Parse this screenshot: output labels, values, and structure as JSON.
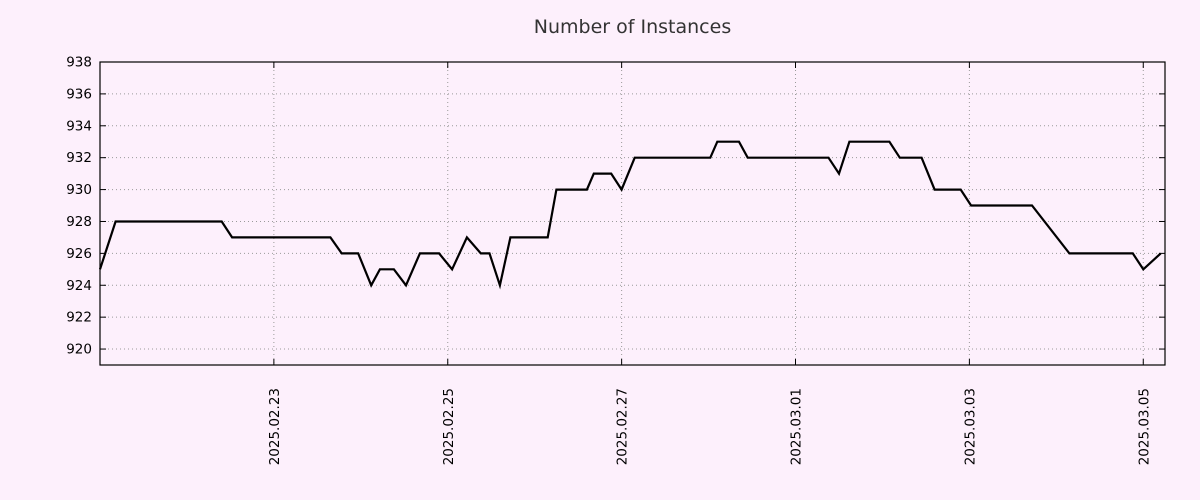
{
  "chart_data": {
    "type": "line",
    "title": "Number of Instances",
    "xlabel": "",
    "ylabel": "",
    "ylim": [
      919,
      938
    ],
    "yticks": [
      920,
      922,
      924,
      926,
      928,
      930,
      932,
      934,
      936,
      938
    ],
    "xlim_days": [
      0,
      12.25
    ],
    "xticks": [
      {
        "day": 2,
        "label": "2025.02.23"
      },
      {
        "day": 4,
        "label": "2025.02.25"
      },
      {
        "day": 6,
        "label": "2025.02.27"
      },
      {
        "day": 8,
        "label": "2025.03.01"
      },
      {
        "day": 10,
        "label": "2025.03.03"
      },
      {
        "day": 12,
        "label": "2025.03.05"
      }
    ],
    "grid": true,
    "legend": "none",
    "colors": {
      "background": "#fdf0fc",
      "line": "#000000",
      "grid": "#9a9a9a",
      "frame": "#000000",
      "title": "#333333"
    },
    "points": [
      [
        0.0,
        925
      ],
      [
        0.18,
        928
      ],
      [
        1.4,
        928
      ],
      [
        1.52,
        927
      ],
      [
        2.65,
        927
      ],
      [
        2.78,
        926
      ],
      [
        2.97,
        926
      ],
      [
        3.12,
        924
      ],
      [
        3.22,
        925
      ],
      [
        3.38,
        925
      ],
      [
        3.52,
        924
      ],
      [
        3.68,
        926
      ],
      [
        3.9,
        926
      ],
      [
        4.05,
        925
      ],
      [
        4.22,
        927
      ],
      [
        4.38,
        926
      ],
      [
        4.48,
        926
      ],
      [
        4.6,
        924
      ],
      [
        4.72,
        927
      ],
      [
        5.15,
        927
      ],
      [
        5.25,
        930
      ],
      [
        5.6,
        930
      ],
      [
        5.68,
        931
      ],
      [
        5.88,
        931
      ],
      [
        6.0,
        930
      ],
      [
        6.15,
        932
      ],
      [
        7.02,
        932
      ],
      [
        7.1,
        933
      ],
      [
        7.35,
        933
      ],
      [
        7.45,
        932
      ],
      [
        8.38,
        932
      ],
      [
        8.5,
        931
      ],
      [
        8.62,
        933
      ],
      [
        9.08,
        933
      ],
      [
        9.2,
        932
      ],
      [
        9.45,
        932
      ],
      [
        9.6,
        930
      ],
      [
        9.9,
        930
      ],
      [
        10.02,
        929
      ],
      [
        10.72,
        929
      ],
      [
        11.15,
        926
      ],
      [
        11.88,
        926
      ],
      [
        12.0,
        925
      ],
      [
        12.2,
        926
      ]
    ]
  }
}
